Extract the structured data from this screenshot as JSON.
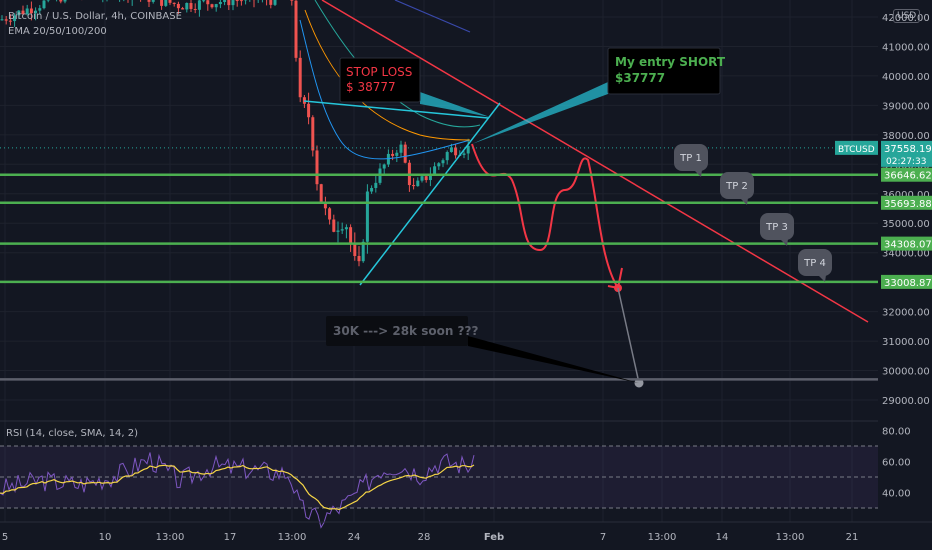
{
  "header": {
    "symbol_line": "Bitcoin / U.S. Dollar, 4h, COINBASE",
    "ema_line": "EMA 20/50/100/200"
  },
  "currency_button": "USD",
  "annotations": {
    "stop_loss": {
      "line1": "STOP LOSS",
      "line2": "$ 38777"
    },
    "entry": {
      "line1": "My entry SHORT",
      "line2": "$37777"
    },
    "target_note": "30K ---> 28k soon ???",
    "tp_labels": [
      "TP 1",
      "TP 2",
      "TP 3",
      "TP 4"
    ]
  },
  "price_badges": {
    "current_symbol": "BTCUSD",
    "current_price": "37558.19",
    "countdown": "02:27:33",
    "levels": [
      "36646.62",
      "35693.88",
      "34308.07",
      "33008.87"
    ]
  },
  "rsi": {
    "title": "RSI (14, close, SMA, 14, 2)",
    "ticks": [
      "80.00",
      "60.00",
      "40.00"
    ]
  },
  "chart_data": {
    "type": "line",
    "title": "Bitcoin / U.S. Dollar, 4h, COINBASE",
    "y_axis": {
      "ticks": [
        42000,
        41000,
        40000,
        39000,
        38000,
        37000,
        36000,
        35000,
        34000,
        33000,
        32000,
        31000,
        30000,
        29000
      ],
      "tick_labels": [
        "42000.00",
        "41000.00",
        "40000.00",
        "39000.00",
        "38000.00",
        "37000.00",
        "36000.00",
        "35000.00",
        "34000.00",
        "33000.00",
        "32000.00",
        "31000.00",
        "30000.00",
        "29000.00"
      ],
      "range": [
        28500,
        42600
      ]
    },
    "x_axis": {
      "tick_labels": [
        "5",
        "10",
        "13:00",
        "17",
        "13:00",
        "24",
        "28",
        "Feb",
        "7",
        "13:00",
        "14",
        "13:00",
        "21"
      ]
    },
    "horizontal_levels": [
      {
        "name": "TP 1",
        "value": 36646.62
      },
      {
        "name": "TP 2",
        "value": 35693.88
      },
      {
        "name": "TP 3",
        "value": 34308.07
      },
      {
        "name": "TP 4",
        "value": 33008.87
      },
      {
        "name": "target",
        "value": 29700
      }
    ],
    "current_price": 37558.19,
    "stop_loss": 38777,
    "entry": 37777,
    "rsi_range": [
      0,
      100
    ],
    "rsi_levels": [
      70,
      50,
      30
    ],
    "colors": {
      "up": "#26a69a",
      "down": "#ef5350",
      "tp_line": "#4caf50",
      "trend": "#f23645",
      "projection": "#f23645",
      "triangle": "#26c6da",
      "rsi": "#7e57c2",
      "rsi_ma": "#f5d547"
    }
  }
}
